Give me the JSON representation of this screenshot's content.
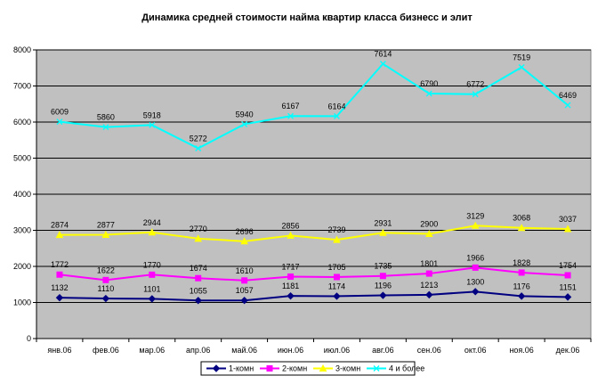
{
  "chart_data": {
    "type": "line",
    "title": "Динамика средней стоимости найма квартир класса бизнесс и элит",
    "xlabel": "",
    "ylabel": "",
    "categories": [
      "янв.06",
      "фев.06",
      "мар.06",
      "апр.06",
      "май.06",
      "июн.06",
      "июл.06",
      "авг.06",
      "сен.06",
      "окт.06",
      "ноя.06",
      "дек.06"
    ],
    "ylim": [
      0,
      8000
    ],
    "yticks": [
      "0",
      "1000",
      "2000",
      "3000",
      "4000",
      "5000",
      "6000",
      "7000",
      "8000"
    ],
    "grid": true,
    "legend_position": "bottom",
    "plot_background": "#c0c0c0",
    "series": [
      {
        "name": "1-комн",
        "color": "#000080",
        "marker": "diamond",
        "values": [
          1132,
          1110,
          1101,
          1055,
          1057,
          1181,
          1174,
          1196,
          1213,
          1300,
          1176,
          1151
        ]
      },
      {
        "name": "2-комн",
        "color": "#ff00ff",
        "marker": "square",
        "values": [
          1772,
          1622,
          1770,
          1674,
          1610,
          1717,
          1705,
          1735,
          1801,
          1966,
          1828,
          1754
        ]
      },
      {
        "name": "3-комн",
        "color": "#ffff00",
        "marker": "triangle",
        "values": [
          2874,
          2877,
          2944,
          2770,
          2696,
          2856,
          2739,
          2931,
          2900,
          3129,
          3068,
          3037
        ]
      },
      {
        "name": "4 и более",
        "color": "#00ffff",
        "marker": "x",
        "values": [
          6009,
          5860,
          5918,
          5272,
          5940,
          6167,
          6164,
          7614,
          6790,
          6772,
          7519,
          6469
        ]
      }
    ]
  }
}
